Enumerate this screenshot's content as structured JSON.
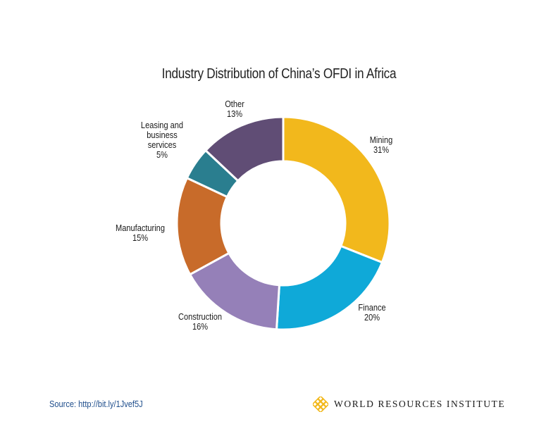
{
  "chart_data": {
    "type": "pie",
    "subtype": "donut",
    "title": "Industry Distribution of China’s OFDI in Africa",
    "start": "12 o'clock, clockwise",
    "slices": [
      {
        "label": "Mining",
        "value": 31,
        "value_label": "31%",
        "color": "#F2B81C",
        "label_lines": [
          "Mining",
          "31%"
        ]
      },
      {
        "label": "Finance",
        "value": 20,
        "value_label": "20%",
        "color": "#0FA9D8",
        "label_lines": [
          "Finance",
          "20%"
        ]
      },
      {
        "label": "Construction",
        "value": 16,
        "value_label": "16%",
        "color": "#9580B8",
        "label_lines": [
          "Construction",
          "16%"
        ]
      },
      {
        "label": "Manufacturing",
        "value": 15,
        "value_label": "15%",
        "color": "#C86B2A",
        "label_lines": [
          "Manufacturing",
          "15%"
        ]
      },
      {
        "label": "Leasing and business services",
        "value": 5,
        "value_label": "5%",
        "color": "#2A7E8F",
        "label_lines": [
          "Leasing and",
          "business",
          "services",
          "5%"
        ]
      },
      {
        "label": "Other",
        "value": 13,
        "value_label": "13%",
        "color": "#604D75",
        "label_lines": [
          "Other",
          "13%"
        ]
      }
    ]
  },
  "footer": {
    "source": "Source: http://bit.ly/1Jvef5J",
    "org": "WORLD RESOURCES INSTITUTE",
    "logo_color": "#F2B81C"
  }
}
